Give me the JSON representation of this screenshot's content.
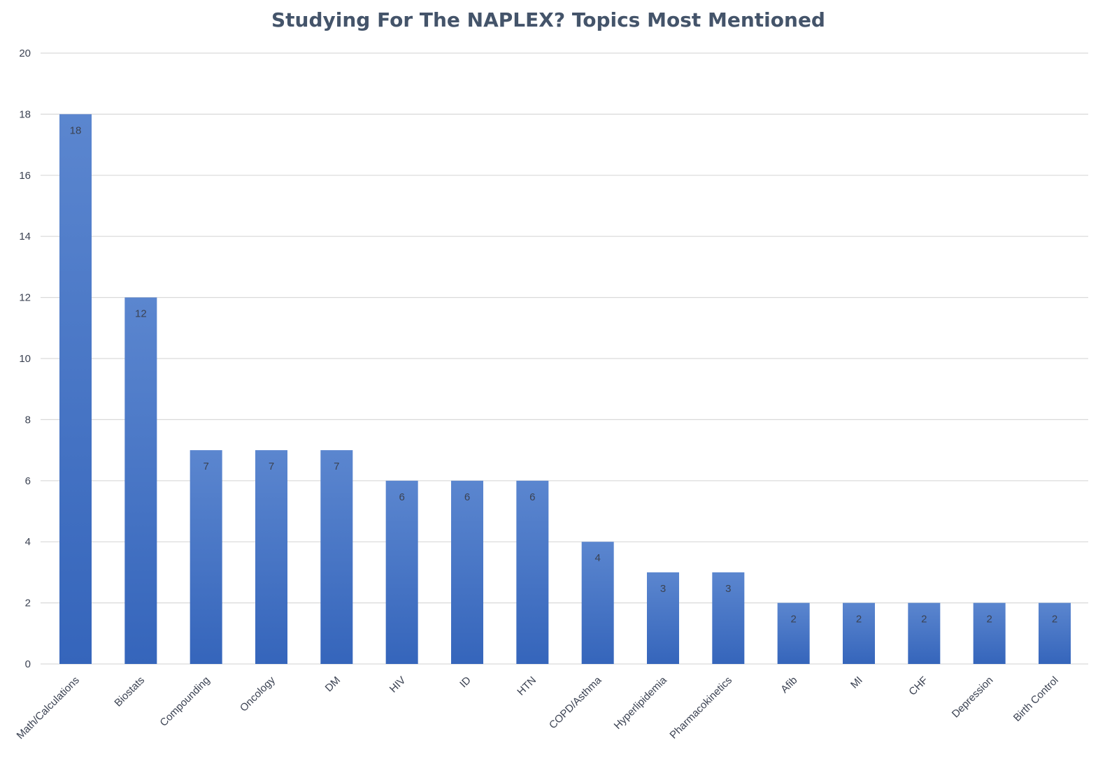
{
  "chart_data": {
    "type": "bar",
    "title": "Studying For The NAPLEX? Topics Most Mentioned",
    "xlabel": "",
    "ylabel": "",
    "categories": [
      "Math/Calculations",
      "Biostats",
      "Compounding",
      "Oncology",
      "DM",
      "HIV",
      "ID",
      "HTN",
      "COPD/Asthma",
      "Hyperlipidemia",
      "Pharmacokinetics",
      "Afib",
      "MI",
      "CHF",
      "Depression",
      "Birth Control"
    ],
    "values": [
      18,
      12,
      7,
      7,
      7,
      6,
      6,
      6,
      4,
      3,
      3,
      2,
      2,
      2,
      2,
      2
    ],
    "data_labels": true,
    "ylim": [
      0,
      20
    ],
    "yticks": [
      0,
      2,
      4,
      6,
      8,
      10,
      12,
      14,
      16,
      18,
      20
    ],
    "grid": true,
    "legend": "none",
    "colors": {
      "bar_top": "#5b86cf",
      "bar_bottom": "#3565bb",
      "grid": "#d9d9d9",
      "title": "#44546a",
      "text": "#3b4252"
    }
  }
}
